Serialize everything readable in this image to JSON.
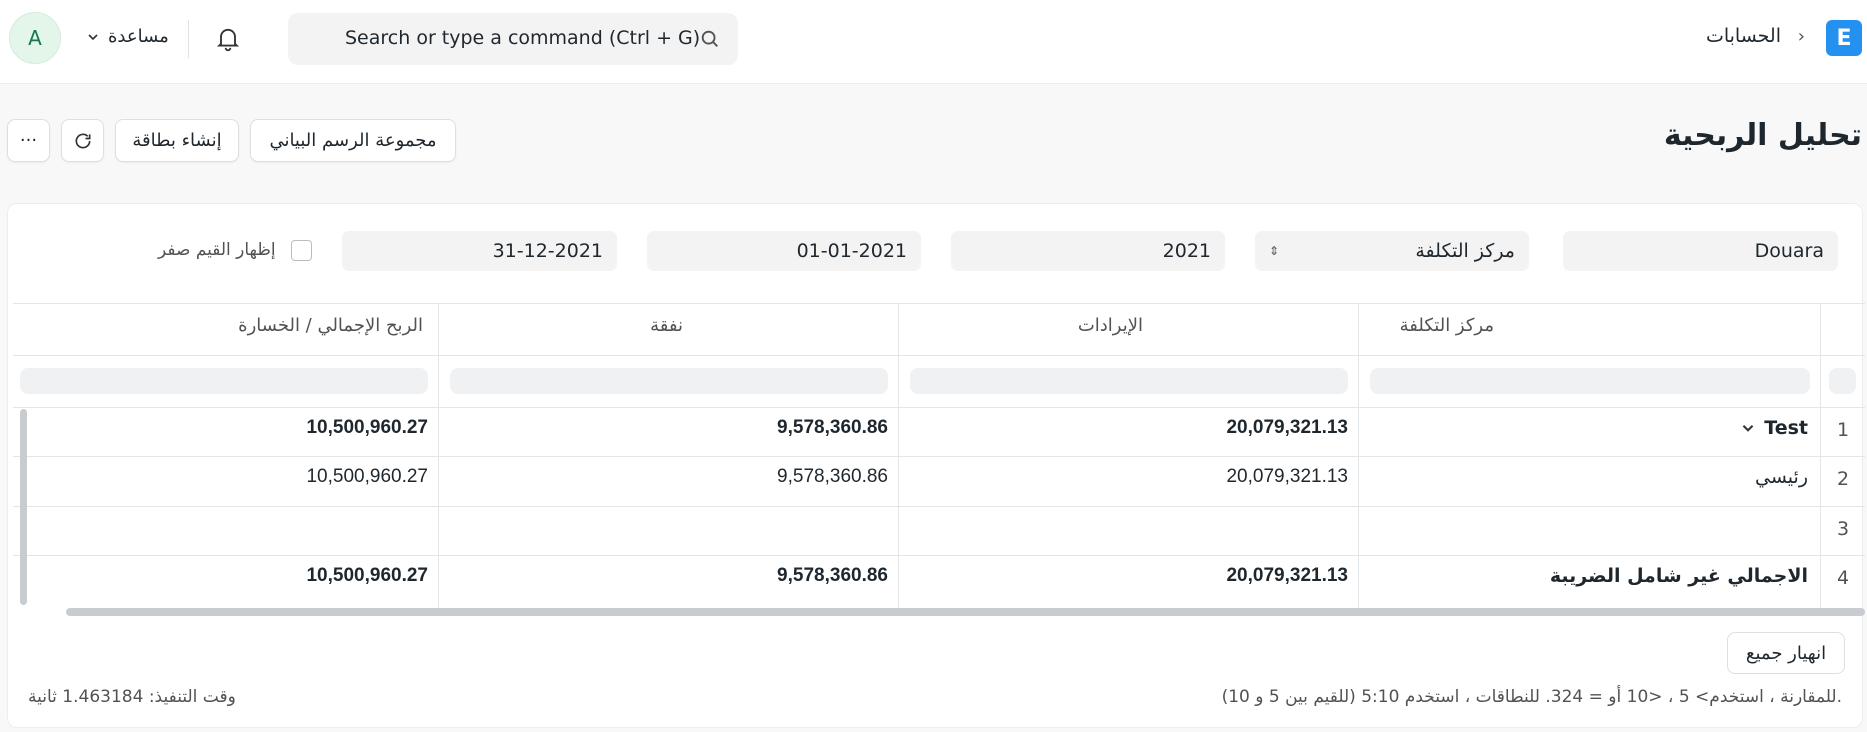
{
  "navbar": {
    "logo_letter": "E",
    "breadcrumb": "الحسابات",
    "breadcrumb_chevron": "›",
    "search_placeholder": "Search or type a command (Ctrl + G)",
    "help_label": "مساعدة",
    "avatar_letter": "A"
  },
  "page": {
    "title": "تحليل الربحية",
    "buttons": {
      "chart_group": "مجموعة الرسم البياني",
      "create_card": "إنشاء بطاقة",
      "more": "···"
    }
  },
  "filters": {
    "company": "Douara",
    "based_on": "مركز التكلفة",
    "fiscal_year": "2021",
    "from_date": "01-01-2021",
    "to_date": "31-12-2021",
    "show_zero_values_label": "إظهار القيم صفر",
    "show_zero_values": false
  },
  "table": {
    "columns": [
      "مركز التكلفة",
      "الإيرادات",
      "نفقة",
      "الربح الإجمالي / الخسارة"
    ],
    "rows": [
      {
        "n": "1",
        "name": "Test",
        "income": "20,079,321.13",
        "expense": "9,578,360.86",
        "profit": "10,500,960.27",
        "bold": true,
        "expandable": true
      },
      {
        "n": "2",
        "name": "رئيسي",
        "income": "20,079,321.13",
        "expense": "9,578,360.86",
        "profit": "10,500,960.27",
        "bold": false
      },
      {
        "n": "3",
        "name": "",
        "income": "",
        "expense": "",
        "profit": "",
        "bold": false
      },
      {
        "n": "4",
        "name": "الاجمالي غير شامل الضريبة",
        "income": "20,079,321.13",
        "expense": "9,578,360.86",
        "profit": "10,500,960.27",
        "bold": true
      }
    ]
  },
  "footer": {
    "collapse_all": "انهيار جميع",
    "note": "للمقارنة ، استخدم> 5 ، <10 أو = 324. للنطاقات ، استخدم 5:10 (للقيم بين 5 و 10).",
    "exec_time": "وقت التنفيذ: 1.463184 ثانية"
  },
  "colors": {
    "accent": "#2490ef",
    "background": "#f8f8f8"
  }
}
